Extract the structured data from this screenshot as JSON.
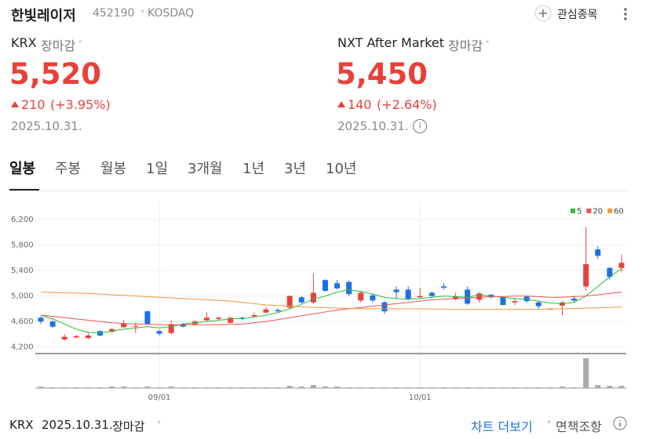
{
  "header": {
    "name": "한빛레이저",
    "code": "452190",
    "market": "KOSDAQ",
    "watch": "관심종목"
  },
  "quotes": [
    {
      "venue": "KRX",
      "status": "장마감",
      "price": "5,520",
      "change": "210",
      "rate": "(+3.95%)",
      "date": "2025.10.31."
    },
    {
      "venue": "NXT After Market",
      "status": "장마감",
      "price": "5,450",
      "change": "140",
      "rate": "(+2.64%)",
      "date": "2025.10.31."
    }
  ],
  "tabs": [
    "일봉",
    "주봉",
    "월봉",
    "1일",
    "3개월",
    "1년",
    "3년",
    "10년"
  ],
  "chart_data": {
    "type": "candlestick",
    "up_color": "#e8413a",
    "down_color": "#1f6fe5",
    "grid": true,
    "categories": [
      null,
      null,
      null,
      null,
      null,
      null,
      null,
      null,
      null,
      null,
      "09/01",
      null,
      null,
      null,
      null,
      null,
      null,
      null,
      null,
      null,
      null,
      null,
      null,
      null,
      null,
      null,
      null,
      null,
      null,
      null,
      null,
      null,
      "10/01",
      null,
      null,
      null,
      null,
      null,
      null,
      null,
      null,
      null,
      null,
      null,
      null,
      null,
      null,
      null,
      null,
      null
    ],
    "open": [
      4660,
      4600,
      4320,
      4350,
      4340,
      4450,
      4440,
      4510,
      4520,
      4760,
      4450,
      4420,
      4560,
      4560,
      4620,
      4640,
      4580,
      4660,
      4680,
      4740,
      4780,
      4820,
      4980,
      4900,
      5250,
      5200,
      5220,
      4930,
      5010,
      4900,
      5100,
      5100,
      4980,
      5050,
      5150,
      4950,
      5100,
      4940,
      5020,
      4980,
      4900,
      4990,
      4900,
      4790,
      4850,
      4960,
      5150,
      5730,
      5440,
      5440
    ],
    "high": [
      4680,
      4620,
      4400,
      4390,
      4420,
      4460,
      4500,
      4620,
      4580,
      4770,
      4470,
      4620,
      4580,
      4620,
      4740,
      4670,
      4670,
      4680,
      4740,
      4830,
      4810,
      5010,
      5000,
      5350,
      5260,
      5250,
      5240,
      5080,
      5040,
      4920,
      5150,
      5150,
      5130,
      5070,
      5200,
      5050,
      5150,
      5060,
      5030,
      5000,
      4970,
      5000,
      4920,
      4810,
      4920,
      5010,
      6080,
      5780,
      5460,
      5650
    ],
    "low": [
      4560,
      4500,
      4300,
      4330,
      4320,
      4370,
      4420,
      4500,
      4420,
      4540,
      4380,
      4400,
      4510,
      4540,
      4600,
      4620,
      4570,
      4620,
      4670,
      4730,
      4750,
      4800,
      4880,
      4870,
      5070,
      5100,
      5000,
      4900,
      4900,
      4720,
      4960,
      4930,
      4960,
      4980,
      5100,
      4930,
      4860,
      4900,
      4960,
      4850,
      4860,
      4890,
      4800,
      4780,
      4700,
      4900,
      5080,
      5580,
      5260,
      5370
    ],
    "close": [
      4600,
      4520,
      4360,
      4370,
      4380,
      4380,
      4480,
      4570,
      4530,
      4560,
      4410,
      4560,
      4520,
      4600,
      4660,
      4660,
      4660,
      4640,
      4700,
      4790,
      4760,
      5000,
      4900,
      5050,
      5080,
      5120,
      5030,
      5050,
      4930,
      4760,
      5060,
      4950,
      5000,
      5000,
      5130,
      4990,
      4880,
      5040,
      4980,
      4860,
      4920,
      4920,
      4840,
      4800,
      4900,
      4930,
      5500,
      5630,
      5300,
      5520
    ],
    "volume": [
      2,
      1,
      1,
      1,
      1,
      1,
      2,
      2,
      1,
      2,
      1,
      2,
      1,
      1,
      1,
      1,
      1,
      1,
      1,
      1,
      1,
      3,
      2,
      4,
      2,
      2,
      1,
      1,
      1,
      1,
      1,
      1,
      1,
      1,
      1,
      1,
      1,
      1,
      1,
      1,
      1,
      1,
      1,
      1,
      2,
      1,
      40,
      4,
      3,
      3
    ],
    "vlim": [
      0,
      42
    ],
    "series": [
      {
        "name": "5",
        "color": "#2dbb3a",
        "values": [
          4700,
          4640,
          4560,
          4480,
          4430,
          4420,
          4450,
          4480,
          4500,
          4520,
          4500,
          4520,
          4560,
          4580,
          4600,
          4620,
          4640,
          4650,
          4670,
          4700,
          4740,
          4800,
          4870,
          4950,
          5000,
          5060,
          5100,
          5070,
          5030,
          4980,
          4960,
          4950,
          4960,
          4980,
          5000,
          4990,
          4980,
          5020,
          5000,
          4980,
          4960,
          4950,
          4920,
          4890,
          4880,
          4900,
          5000,
          5150,
          5300,
          5430
        ]
      },
      {
        "name": "20",
        "color": "#f05050",
        "values": [
          4700,
          4680,
          4660,
          4640,
          4620,
          4600,
          4580,
          4570,
          4560,
          4560,
          4550,
          4550,
          4550,
          4550,
          4550,
          4550,
          4555,
          4560,
          4580,
          4600,
          4630,
          4660,
          4690,
          4720,
          4750,
          4780,
          4800,
          4820,
          4840,
          4860,
          4880,
          4900,
          4920,
          4940,
          4950,
          4960,
          4970,
          4980,
          4990,
          4990,
          5000,
          5000,
          4990,
          4980,
          4980,
          4990,
          5000,
          5020,
          5040,
          5060
        ]
      },
      {
        "name": "60",
        "color": "#f5953a",
        "values": [
          5060,
          5055,
          5050,
          5045,
          5040,
          5030,
          5020,
          5010,
          5000,
          4990,
          4980,
          4970,
          4960,
          4950,
          4940,
          4930,
          4920,
          4900,
          4880,
          4860,
          4850,
          4840,
          4830,
          4820,
          4815,
          4810,
          4805,
          4800,
          4800,
          4800,
          4800,
          4800,
          4800,
          4795,
          4795,
          4790,
          4790,
          4790,
          4790,
          4790,
          4790,
          4790,
          4790,
          4795,
          4800,
          4805,
          4810,
          4815,
          4820,
          4830
        ]
      }
    ],
    "ylim": [
      4110,
      6470
    ],
    "yticks": [
      {
        "value": 4200,
        "label": "4,200"
      },
      {
        "value": 4600,
        "label": "4,600"
      },
      {
        "value": 5000,
        "label": "5,000"
      },
      {
        "value": 5400,
        "label": "5,400"
      },
      {
        "value": 5800,
        "label": "5,800"
      },
      {
        "value": 6200,
        "label": "6,200"
      }
    ]
  },
  "footer": {
    "venue": "KRX",
    "date": "2025.10.31.",
    "status": "장마감",
    "more": "차트 더보기",
    "disclaimer": "면책조항"
  }
}
